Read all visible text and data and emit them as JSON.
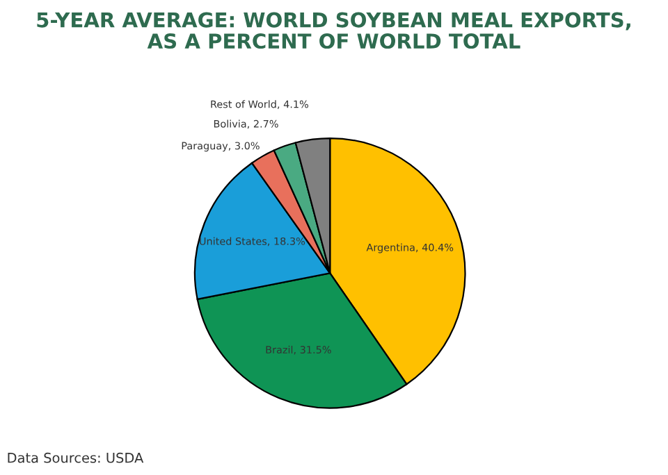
{
  "chart_data": {
    "type": "pie",
    "title": "5-YEAR AVERAGE: WORLD SOYBEAN MEAL EXPORTS,\nAS A PERCENT OF WORLD TOTAL",
    "categories": [
      "Argentina",
      "Brazil",
      "United States",
      "Paraguay",
      "Bolivia",
      "Rest of World"
    ],
    "values": [
      40.4,
      31.5,
      18.3,
      3.0,
      2.7,
      4.1
    ],
    "colors": [
      "#ffc000",
      "#0f9455",
      "#1a9ed9",
      "#e8705c",
      "#4aaa82",
      "#808080"
    ],
    "value_labels": [
      "40.4%",
      "31.5%",
      "18.3%",
      "3.0%",
      "2.7%",
      "4.1%"
    ],
    "annotations": [
      "Data Sources: USDA"
    ]
  }
}
